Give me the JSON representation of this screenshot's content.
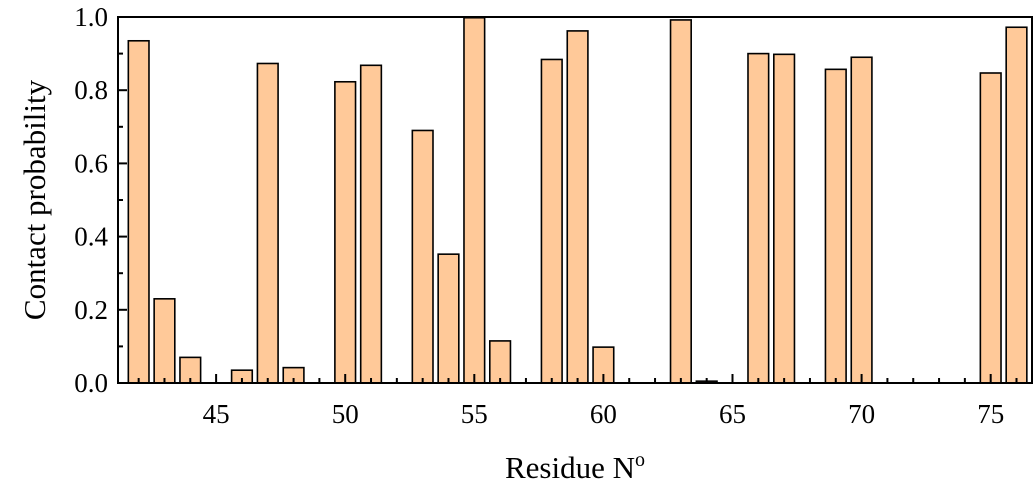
{
  "chart_data": {
    "type": "bar",
    "xlabel": "Residue N",
    "xlabel_superscript": "o",
    "ylabel": "Contact probability",
    "xlim": [
      41.2,
      76.6
    ],
    "ylim": [
      0,
      1.0
    ],
    "x_ticks": [
      45,
      50,
      55,
      60,
      65,
      70,
      75
    ],
    "x_tick_labels": [
      "45",
      "50",
      "55",
      "60",
      "65",
      "70",
      "75"
    ],
    "y_ticks": [
      0,
      0.2,
      0.4,
      0.6,
      0.8,
      1.0
    ],
    "y_tick_labels": [
      "0.0",
      "0.2",
      "0.4",
      "0.6",
      "0.8",
      "1.0"
    ],
    "grid": false,
    "colors": {
      "bar_fill": "#FFC999",
      "bar_stroke": "#000000"
    },
    "x": [
      42,
      43,
      44,
      46,
      47,
      48,
      50,
      51,
      53,
      54,
      55,
      56,
      58,
      59,
      60,
      63,
      64,
      66,
      67,
      69,
      70,
      75,
      76
    ],
    "values": [
      0.935,
      0.23,
      0.07,
      0.035,
      0.873,
      0.042,
      0.823,
      0.868,
      0.69,
      0.352,
      0.998,
      0.115,
      0.884,
      0.962,
      0.098,
      0.992,
      0.005,
      0.9,
      0.898,
      0.857,
      0.89,
      0.847,
      0.972
    ]
  }
}
